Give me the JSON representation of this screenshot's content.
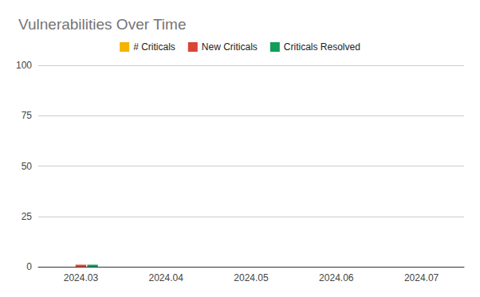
{
  "chart_data": {
    "type": "bar",
    "title": "Vulnerabilities Over Time",
    "categories": [
      "2024.03",
      "2024.04",
      "2024.05",
      "2024.06",
      "2024.07"
    ],
    "series": [
      {
        "name": "# Criticals",
        "color": "#f4b400",
        "values": [
          0,
          0,
          0,
          0,
          0
        ]
      },
      {
        "name": "New Criticals",
        "color": "#db4437",
        "values": [
          1,
          0,
          0,
          0,
          0
        ]
      },
      {
        "name": "Criticals Resolved",
        "color": "#0f9d58",
        "values": [
          1,
          0,
          0,
          0,
          0
        ]
      }
    ],
    "ylim": [
      0,
      100
    ],
    "yticks": [
      0,
      25,
      50,
      75,
      100
    ],
    "grid": true,
    "legend": "top"
  }
}
